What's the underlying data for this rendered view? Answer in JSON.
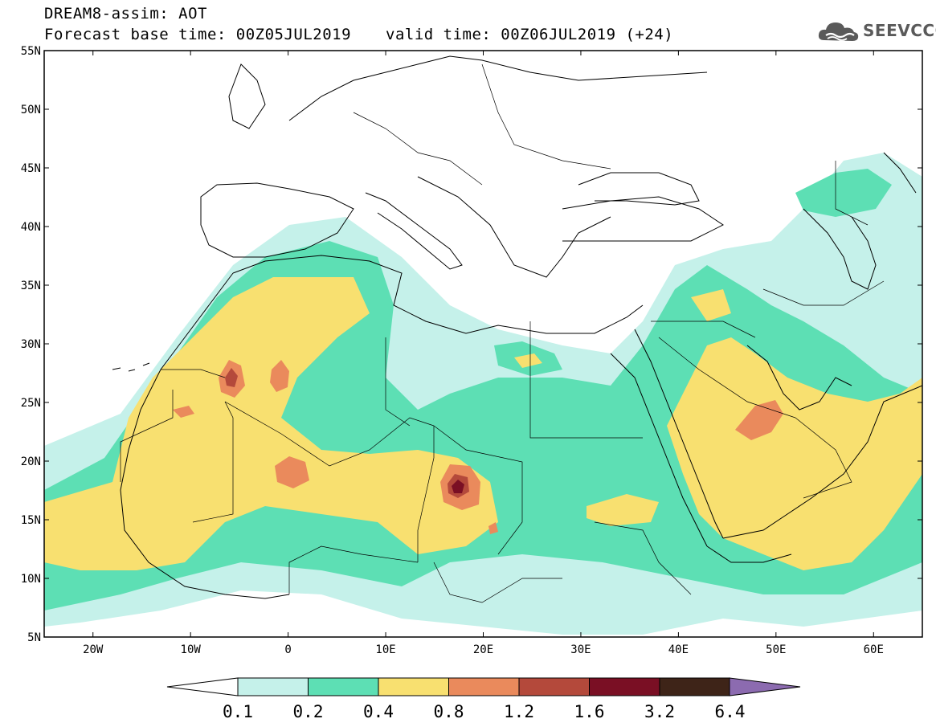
{
  "title": {
    "line1": "DREAM8-assim: AOT",
    "line2_left": "Forecast base time: 00Z05JUL2019",
    "line2_right": "valid time: 00Z06JUL2019 (+24)"
  },
  "logo": {
    "text": "SEEVCCC",
    "icon": "cloud-icon"
  },
  "map": {
    "lat_labels": [
      "55N",
      "50N",
      "45N",
      "40N",
      "35N",
      "30N",
      "25N",
      "20N",
      "15N",
      "10N",
      "5N"
    ],
    "lon_labels": [
      "20W",
      "10W",
      "0",
      "10E",
      "20E",
      "30E",
      "40E",
      "50E",
      "60E"
    ],
    "lat_range": [
      5,
      55
    ],
    "lon_range": [
      -25,
      65
    ]
  },
  "colorbar": {
    "labels": [
      "0.1",
      "0.2",
      "0.4",
      "0.8",
      "1.2",
      "1.6",
      "3.2",
      "6.4"
    ],
    "colors": [
      "#c5f1ea",
      "#5ddfb4",
      "#f8e070",
      "#ea8a5c",
      "#b4493b",
      "#7a0f24",
      "#3e2418",
      "#8c6bb0"
    ]
  }
}
